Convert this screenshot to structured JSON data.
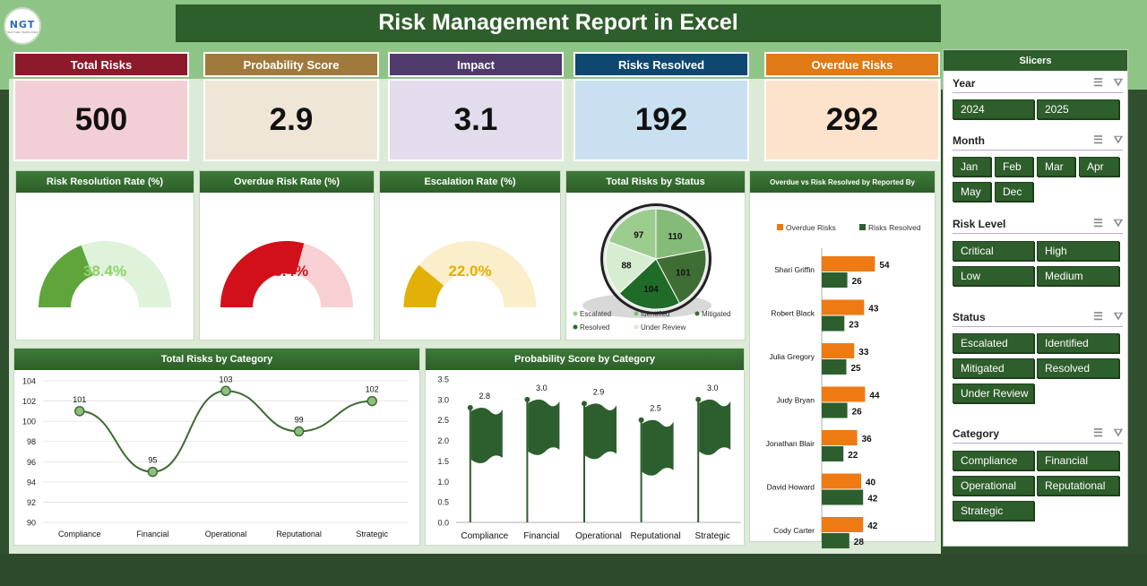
{
  "title": "Risk Management Report in Excel",
  "logo": {
    "text": "NGT",
    "subtext": "NEXT GEN TEMPLATES"
  },
  "kpis": [
    {
      "label": "Total Risks",
      "value": "500",
      "head_color": "#8c1a2b",
      "body_color": "#f2cfd5"
    },
    {
      "label": "Probability Score",
      "value": "2.9",
      "head_color": "#a07a3c",
      "body_color": "#efe6d8"
    },
    {
      "label": "Impact",
      "value": "3.1",
      "head_color": "#4f3a6c",
      "body_color": "#e2dcec"
    },
    {
      "label": "Risks Resolved",
      "value": "192",
      "head_color": "#0e4770",
      "body_color": "#c9e0f0"
    },
    {
      "label": "Overdue Risks",
      "value": "292",
      "head_color": "#e07a14",
      "body_color": "#fde3cb"
    }
  ],
  "gauges": [
    {
      "title": "Risk Resolution Rate (%)",
      "value_label": "38.4%",
      "fraction": 0.384,
      "color": "#5fa53b",
      "track": "#dff2da",
      "text_color": "#8ed36b"
    },
    {
      "title": "Overdue Risk Rate (%)",
      "value_label": "58.4%",
      "fraction": 0.584,
      "color": "#d1101a",
      "track": "#f8d0d4",
      "text_color": "#d1101a"
    },
    {
      "title": "Escalation Rate (%)",
      "value_label": "22.0%",
      "fraction": 0.22,
      "color": "#e2b006",
      "track": "#fbeeca",
      "text_color": "#e2b006"
    }
  ],
  "pie": {
    "title": "Total Risks by Status",
    "slices": [
      {
        "name": "Escalated",
        "value": 97,
        "color": "#9ccd8f"
      },
      {
        "name": "Identified",
        "value": 110,
        "color": "#85bb78"
      },
      {
        "name": "Mitigated",
        "value": 101,
        "color": "#3f6e35"
      },
      {
        "name": "Resolved",
        "value": 104,
        "color": "#1f6b28"
      },
      {
        "name": "Under Review",
        "value": 88,
        "color": "#d7edd1"
      }
    ]
  },
  "bars_h": {
    "title": "Overdue vs Risk Resolved by Reported By",
    "legend": [
      "Overdue Risks",
      "Risks Resolved"
    ],
    "colors": [
      "#ee7a14",
      "#2c5f2d"
    ],
    "people": [
      {
        "name": "Shari Griffin",
        "overdue": 54,
        "resolved": 26
      },
      {
        "name": "Robert Black",
        "overdue": 43,
        "resolved": 23
      },
      {
        "name": "Julia Gregory",
        "overdue": 33,
        "resolved": 25
      },
      {
        "name": "Judy Bryan",
        "overdue": 44,
        "resolved": 26
      },
      {
        "name": "Jonathan Blair",
        "overdue": 36,
        "resolved": 22
      },
      {
        "name": "David Howard",
        "overdue": 40,
        "resolved": 42
      },
      {
        "name": "Cody Carter",
        "overdue": 42,
        "resolved": 28
      }
    ]
  },
  "line": {
    "title": "Total Risks by Category",
    "categories": [
      "Compliance",
      "Financial",
      "Operational",
      "Reputational",
      "Strategic"
    ],
    "values": [
      101,
      95,
      103,
      99,
      102
    ],
    "y_ticks": [
      "104",
      "102",
      "100",
      "98",
      "96",
      "94",
      "92",
      "90"
    ],
    "ymin": 90,
    "ymax": 104
  },
  "prob": {
    "title": "Probability Score by Category",
    "categories": [
      "Compliance",
      "Financial",
      "Operational",
      "Reputational",
      "Strategic"
    ],
    "values": [
      2.8,
      3.0,
      2.9,
      2.5,
      3.0
    ],
    "labels": [
      "2.8",
      "3.0",
      "2.9",
      "2.5",
      "3.0"
    ],
    "y_ticks": [
      "3.5",
      "3.0",
      "2.5",
      "2.0",
      "1.5",
      "1.0",
      "0.5",
      "0.0"
    ],
    "ymax": 3.5
  },
  "chart_data": [
    {
      "type": "bar",
      "title": "Overdue vs Risk Resolved by Reported By",
      "categories": [
        "Shari Griffin",
        "Robert Black",
        "Julia Gregory",
        "Judy Bryan",
        "Jonathan Blair",
        "David Howard",
        "Cody Carter"
      ],
      "series": [
        {
          "name": "Overdue Risks",
          "values": [
            54,
            43,
            33,
            44,
            36,
            40,
            42
          ]
        },
        {
          "name": "Risks Resolved",
          "values": [
            26,
            23,
            25,
            26,
            22,
            42,
            28
          ]
        }
      ]
    },
    {
      "type": "pie",
      "title": "Total Risks by Status",
      "categories": [
        "Escalated",
        "Identified",
        "Mitigated",
        "Resolved",
        "Under Review"
      ],
      "values": [
        97,
        110,
        101,
        104,
        88
      ]
    },
    {
      "type": "line",
      "title": "Total Risks by Category",
      "categories": [
        "Compliance",
        "Financial",
        "Operational",
        "Reputational",
        "Strategic"
      ],
      "values": [
        101,
        95,
        103,
        99,
        102
      ],
      "ylim": [
        90,
        104
      ]
    },
    {
      "type": "bar",
      "title": "Probability Score by Category",
      "categories": [
        "Compliance",
        "Financial",
        "Operational",
        "Reputational",
        "Strategic"
      ],
      "values": [
        2.8,
        3.0,
        2.9,
        2.5,
        3.0
      ],
      "ylim": [
        0,
        3.5
      ]
    }
  ],
  "slicers": {
    "title": "Slicers",
    "groups": [
      {
        "name": "Year",
        "items": [
          "2024",
          "2025"
        ]
      },
      {
        "name": "Month",
        "items": [
          "Jan",
          "Feb",
          "Mar",
          "Apr",
          "May",
          "Dec"
        ]
      },
      {
        "name": "Risk Level",
        "items": [
          "Critical",
          "High",
          "Low",
          "Medium"
        ]
      },
      {
        "name": "Status",
        "items": [
          "Escalated",
          "Identified",
          "Mitigated",
          "Resolved",
          "Under Review"
        ]
      },
      {
        "name": "Category",
        "items": [
          "Compliance",
          "Financial",
          "Operational",
          "Reputational",
          "Strategic"
        ]
      }
    ]
  }
}
